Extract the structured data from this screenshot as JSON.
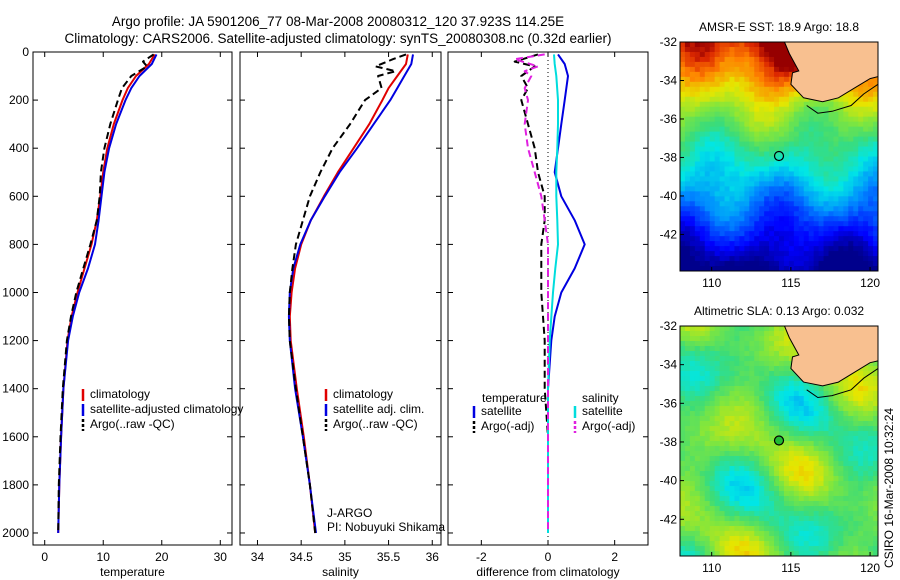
{
  "header": {
    "line1": "Argo profile: JA 5901206_77 08-Mar-2008 20080312_120 37.923S 114.25E",
    "line2": "Climatology: CARS2006. Satellite-adjusted climatology: synTS_20080308.nc (0.32d earlier)"
  },
  "side_stamp": "CSIRO 16-Mar-2008 10:32:24",
  "colors": {
    "climatology": "#e00000",
    "satellite": "#0000e0",
    "argo": "#000000",
    "salinity_sat": "#00dddd",
    "salinity_argo": "#e020e0",
    "land": "#f8c090"
  },
  "chart_data": [
    {
      "id": "temperature",
      "type": "line",
      "xlabel": "temperature",
      "ylabel": "",
      "xlim": [
        -2,
        32
      ],
      "ylim": [
        0,
        2050
      ],
      "y_reversed": true,
      "xticks": [
        0,
        10,
        20,
        30
      ],
      "yticks": [
        0,
        200,
        400,
        600,
        800,
        1000,
        1200,
        1400,
        1600,
        1800,
        2000
      ],
      "legend": [
        "climatology",
        "satellite-adjusted climatology",
        "Argo(..raw -QC)"
      ],
      "series": [
        {
          "name": "climatology",
          "color": "#e00000",
          "dash": "",
          "depth": [
            10,
            50,
            100,
            150,
            200,
            300,
            400,
            500,
            600,
            700,
            800,
            900,
            1000,
            1100,
            1200,
            1400,
            1600,
            1800,
            2000
          ],
          "values": [
            18.8,
            17.8,
            15.6,
            14.2,
            13.3,
            11.8,
            10.7,
            10.0,
            9.5,
            8.9,
            8.0,
            6.8,
            5.6,
            4.6,
            3.9,
            3.2,
            2.8,
            2.5,
            2.3
          ]
        },
        {
          "name": "satellite-adjusted climatology",
          "color": "#0000e0",
          "dash": "",
          "depth": [
            10,
            50,
            100,
            150,
            200,
            300,
            400,
            500,
            600,
            700,
            800,
            900,
            1000,
            1100,
            1200,
            1400,
            1600,
            1800,
            2000
          ],
          "values": [
            19.1,
            18.3,
            16.2,
            14.8,
            13.8,
            12.2,
            11.0,
            10.2,
            9.7,
            9.2,
            8.6,
            7.4,
            5.9,
            4.8,
            4.0,
            3.2,
            2.8,
            2.5,
            2.3
          ]
        },
        {
          "name": "Argo(..raw -QC)",
          "color": "#000000",
          "dash": "7,4",
          "depth": [
            10,
            40,
            60,
            100,
            150,
            200,
            300,
            400,
            500,
            600,
            700,
            800,
            900,
            1000,
            1100,
            1200,
            1400,
            1600,
            1800,
            2000
          ],
          "values": [
            18.6,
            16.8,
            17.5,
            14.8,
            13.2,
            12.5,
            11.2,
            10.2,
            9.6,
            9.4,
            8.9,
            7.8,
            6.6,
            5.4,
            4.5,
            3.8,
            3.1,
            2.7,
            2.4,
            2.3
          ]
        }
      ]
    },
    {
      "id": "salinity",
      "type": "line",
      "xlabel": "salinity",
      "ylabel": "",
      "xlim": [
        33.8,
        36.1
      ],
      "ylim": [
        0,
        2050
      ],
      "y_reversed": true,
      "xticks": [
        34,
        34.5,
        35,
        35.5,
        36
      ],
      "legend": [
        "climatology",
        "satellite adj. clim.",
        "Argo(..raw -QC)"
      ],
      "annotation": [
        "J-ARGO",
        "PI: Nobuyuki Shikama"
      ],
      "series": [
        {
          "name": "climatology",
          "color": "#e00000",
          "dash": "",
          "depth": [
            10,
            50,
            100,
            150,
            200,
            300,
            400,
            500,
            600,
            700,
            800,
            900,
            1000,
            1100,
            1200,
            1400,
            1600,
            1800,
            2000
          ],
          "values": [
            35.72,
            35.7,
            35.6,
            35.5,
            35.43,
            35.28,
            35.1,
            34.92,
            34.76,
            34.61,
            34.5,
            34.43,
            34.39,
            34.37,
            34.38,
            34.45,
            34.53,
            34.6,
            34.66
          ]
        },
        {
          "name": "satellite adj. clim.",
          "color": "#0000e0",
          "dash": "",
          "depth": [
            10,
            50,
            100,
            150,
            200,
            300,
            400,
            500,
            600,
            700,
            800,
            900,
            1000,
            1100,
            1200,
            1400,
            1600,
            1800,
            2000
          ],
          "values": [
            35.78,
            35.76,
            35.68,
            35.6,
            35.52,
            35.33,
            35.14,
            34.94,
            34.77,
            34.61,
            34.49,
            34.41,
            34.37,
            34.36,
            34.37,
            34.43,
            34.52,
            34.6,
            34.67
          ]
        },
        {
          "name": "Argo(..raw -QC)",
          "color": "#000000",
          "dash": "7,4",
          "depth": [
            10,
            30,
            60,
            80,
            100,
            150,
            200,
            300,
            400,
            500,
            600,
            700,
            800,
            900,
            1000,
            1100,
            1200,
            1400,
            1600,
            1800,
            2000
          ],
          "values": [
            35.7,
            35.55,
            35.35,
            35.58,
            35.38,
            35.42,
            35.23,
            35.06,
            34.86,
            34.72,
            34.6,
            34.52,
            34.44,
            34.4,
            34.37,
            34.36,
            34.37,
            34.44,
            34.52,
            34.6,
            34.66
          ]
        }
      ]
    },
    {
      "id": "difference",
      "type": "line",
      "xlabel": "difference from climatology",
      "ylabel": "",
      "xlim": [
        -3,
        3
      ],
      "ylim": [
        0,
        2050
      ],
      "y_reversed": true,
      "xticks": [
        -2,
        0,
        2
      ],
      "legend_left_title": "temperature",
      "legend_right_title": "salinity",
      "legend_left": [
        "satellite",
        "Argo(-adj)"
      ],
      "legend_right": [
        "satellite",
        "Argo(-adj)"
      ],
      "series": [
        {
          "name": "satellite",
          "group": "temperature",
          "color": "#0000e0",
          "dash": "",
          "depth": [
            10,
            50,
            100,
            200,
            300,
            400,
            500,
            600,
            700,
            800,
            900,
            1000,
            1100,
            1200,
            1400,
            1600,
            1800,
            2000
          ],
          "values": [
            0.3,
            0.5,
            0.6,
            0.5,
            0.4,
            0.3,
            0.2,
            0.4,
            0.8,
            1.1,
            0.8,
            0.4,
            0.2,
            0.1,
            0.0,
            0.0,
            0.0,
            0.0
          ]
        },
        {
          "name": "Argo(-adj)",
          "group": "temperature",
          "color": "#000000",
          "dash": "7,4",
          "depth": [
            10,
            40,
            60,
            100,
            150,
            200,
            300,
            400,
            500,
            600,
            700,
            800,
            900,
            1000,
            1200,
            1400,
            1600,
            1800,
            2000
          ],
          "values": [
            -0.3,
            -1.0,
            -0.4,
            -0.8,
            -0.6,
            -0.8,
            -0.6,
            -0.4,
            -0.3,
            -0.1,
            -0.1,
            -0.2,
            -0.2,
            -0.2,
            -0.1,
            -0.1,
            0.0,
            0.0,
            0.0
          ]
        },
        {
          "name": "satellite",
          "group": "salinity",
          "color": "#00dddd",
          "dash": "",
          "depth": [
            10,
            50,
            100,
            200,
            300,
            400,
            500,
            600,
            700,
            800,
            900,
            1000,
            1200,
            1400,
            1600,
            1800,
            2000
          ],
          "values": [
            0.18,
            0.2,
            0.25,
            0.3,
            0.3,
            0.28,
            0.25,
            0.25,
            0.28,
            0.3,
            0.22,
            0.15,
            0.05,
            0.0,
            0.0,
            0.0,
            0.0
          ]
        },
        {
          "name": "Argo(-adj)",
          "group": "salinity",
          "color": "#e020e0",
          "dash": "7,4",
          "depth": [
            10,
            30,
            60,
            80,
            100,
            150,
            200,
            300,
            400,
            500,
            600,
            700,
            800,
            1000,
            1200,
            1400,
            1600,
            1800,
            2000
          ],
          "values": [
            -0.1,
            -1.0,
            -0.3,
            -0.7,
            -0.5,
            -0.7,
            -0.6,
            -0.7,
            -0.6,
            -0.4,
            -0.2,
            -0.1,
            0.0,
            0.0,
            0.0,
            0.0,
            0.0,
            0.0,
            0.0
          ]
        }
      ]
    },
    {
      "id": "sst_map",
      "type": "heatmap",
      "title": "AMSR-E SST: 18.9 Argo: 18.8",
      "xlim": [
        108,
        120.5
      ],
      "ylim": [
        -43.9,
        -32
      ],
      "xticks": [
        110,
        115,
        120
      ],
      "yticks": [
        -32,
        -34,
        -36,
        -38,
        -40,
        -42
      ],
      "marker": {
        "lon": 114.25,
        "lat": -37.923
      }
    },
    {
      "id": "sla_map",
      "type": "heatmap",
      "title": "Altimetric SLA: 0.13 Argo: 0.032",
      "xlim": [
        108,
        120.5
      ],
      "ylim": [
        -43.9,
        -32
      ],
      "xticks": [
        110,
        115,
        120
      ],
      "yticks": [
        -32,
        -34,
        -36,
        -38,
        -40,
        -42
      ],
      "marker": {
        "lon": 114.25,
        "lat": -37.923
      }
    }
  ]
}
